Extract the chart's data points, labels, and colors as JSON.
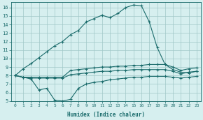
{
  "xlabel": "Humidex (Indice chaleur)",
  "bg_color": "#d6efef",
  "grid_color": "#a0c8c8",
  "line_color": "#1a6b6b",
  "xlim": [
    -0.5,
    23.5
  ],
  "ylim": [
    5,
    16.6
  ],
  "xticks": [
    0,
    1,
    2,
    3,
    4,
    5,
    6,
    7,
    8,
    9,
    10,
    11,
    12,
    13,
    14,
    15,
    16,
    17,
    18,
    19,
    20,
    21,
    22,
    23
  ],
  "yticks": [
    5,
    6,
    7,
    8,
    9,
    10,
    11,
    12,
    13,
    14,
    15,
    16
  ],
  "series": [
    {
      "x": [
        0,
        1,
        2,
        3,
        4,
        5,
        6,
        7,
        8,
        9,
        10,
        11,
        12,
        13,
        14,
        15,
        16,
        17,
        18,
        19,
        20,
        21,
        22,
        23
      ],
      "y": [
        8.0,
        8.8,
        9.4,
        10.1,
        10.8,
        11.5,
        12.0,
        12.8,
        13.3,
        14.3,
        14.7,
        15.1,
        14.8,
        15.3,
        16.0,
        16.3,
        16.2,
        14.3,
        11.3,
        9.3,
        8.7,
        8.4,
        8.3,
        8.5
      ]
    },
    {
      "x": [
        0,
        1,
        2,
        3,
        4,
        5,
        6,
        7,
        8,
        9,
        10,
        11,
        12,
        13,
        14,
        15,
        16,
        17,
        18,
        19,
        20,
        21,
        22,
        23
      ],
      "y": [
        8.0,
        7.8,
        7.8,
        7.8,
        7.8,
        7.8,
        7.8,
        8.6,
        8.7,
        8.8,
        8.9,
        9.0,
        9.0,
        9.1,
        9.1,
        9.2,
        9.2,
        9.3,
        9.3,
        9.3,
        9.0,
        8.6,
        8.8,
        8.9
      ]
    },
    {
      "x": [
        0,
        1,
        2,
        3,
        4,
        5,
        6,
        7,
        8,
        9,
        10,
        11,
        12,
        13,
        14,
        15,
        16,
        17,
        18,
        19,
        20,
        21,
        22,
        23
      ],
      "y": [
        8.0,
        7.8,
        7.7,
        7.7,
        7.7,
        7.7,
        7.7,
        8.1,
        8.2,
        8.3,
        8.4,
        8.5,
        8.5,
        8.6,
        8.6,
        8.7,
        8.7,
        8.7,
        8.7,
        8.7,
        8.5,
        8.2,
        8.4,
        8.5
      ]
    },
    {
      "x": [
        0,
        1,
        2,
        3,
        4,
        5,
        6,
        7,
        8,
        9,
        10,
        11,
        12,
        13,
        14,
        15,
        16,
        17,
        18,
        19,
        20,
        21,
        22,
        23
      ],
      "y": [
        8.0,
        7.8,
        7.6,
        6.3,
        6.5,
        5.1,
        5.0,
        5.2,
        6.5,
        7.0,
        7.2,
        7.3,
        7.5,
        7.6,
        7.7,
        7.8,
        7.8,
        7.9,
        7.9,
        7.9,
        7.8,
        7.7,
        7.8,
        7.9
      ]
    }
  ]
}
